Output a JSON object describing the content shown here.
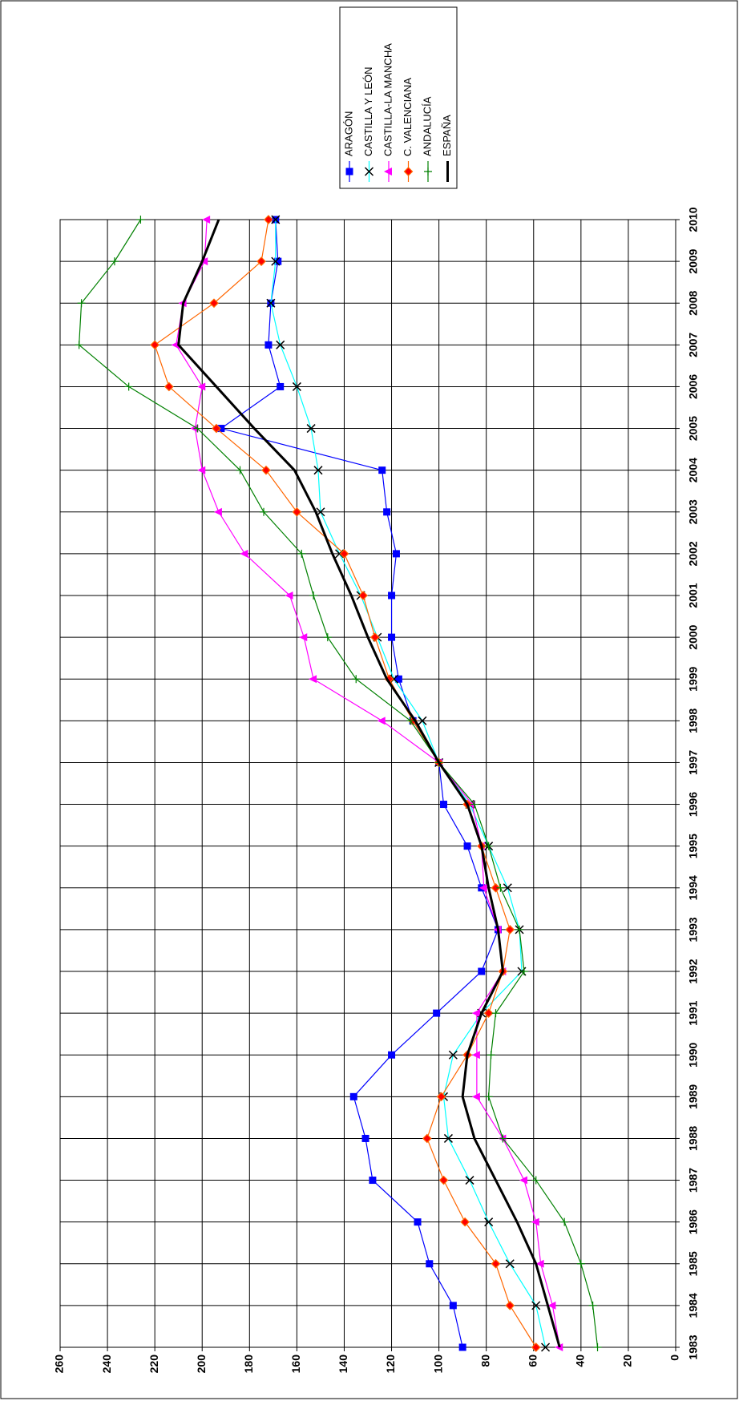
{
  "chart_data": {
    "type": "line",
    "x": [
      1983,
      1984,
      1985,
      1986,
      1987,
      1988,
      1989,
      1990,
      1991,
      1992,
      1993,
      1994,
      1995,
      1996,
      1997,
      1998,
      1999,
      2000,
      2001,
      2002,
      2003,
      2004,
      2005,
      2006,
      2007,
      2008,
      2009,
      2010
    ],
    "xlim": [
      1983,
      2010
    ],
    "xticks": [
      1983,
      1984,
      1985,
      1986,
      1987,
      1988,
      1989,
      1990,
      1991,
      1992,
      1993,
      1994,
      1995,
      1996,
      1997,
      1998,
      1999,
      2000,
      2001,
      2002,
      2003,
      2004,
      2005,
      2006,
      2007,
      2008,
      2009,
      2010
    ],
    "ylim": [
      0,
      260
    ],
    "yticks": [
      0,
      20,
      40,
      60,
      80,
      100,
      120,
      140,
      160,
      180,
      200,
      220,
      240,
      260
    ],
    "grid": true,
    "rotated": true,
    "legend": "top-right",
    "series": [
      {
        "name": "ARAGÓN",
        "color": "#0000ff",
        "marker": "square",
        "marker_color": "#0000ff",
        "line_width": 1.2,
        "values": [
          90,
          94,
          104,
          109,
          128,
          131,
          136,
          120,
          101,
          82,
          75,
          82,
          88,
          98,
          100,
          111,
          117,
          120,
          120,
          118,
          122,
          124,
          192,
          167,
          172,
          171,
          168,
          169
        ]
      },
      {
        "name": "CASTILLA Y LEÓN",
        "color": "#00ffff",
        "marker": "x",
        "marker_color": "#000000",
        "line_width": 1.2,
        "values": [
          55,
          59,
          70,
          79,
          87,
          96,
          98,
          94,
          82,
          65,
          66,
          71,
          79,
          87,
          100,
          107,
          119,
          126,
          133,
          142,
          150,
          151,
          154,
          160,
          167,
          171,
          169,
          169
        ]
      },
      {
        "name": "CASTILLA-LA MANCHA",
        "color": "#ff00ff",
        "marker": "triangle",
        "marker_color": "#ff00ff",
        "line_width": 1.2,
        "values": [
          49,
          52,
          57,
          59,
          64,
          73,
          84,
          84,
          84,
          73,
          75,
          81,
          82,
          86,
          100,
          124,
          153,
          157,
          163,
          182,
          193,
          200,
          203,
          200,
          211,
          208,
          199,
          198
        ]
      },
      {
        "name": "C. VALENCIANA",
        "color": "#ff6600",
        "marker": "diamond",
        "marker_color": "#ff0000",
        "line_width": 1.2,
        "values": [
          59,
          70,
          76,
          89,
          98,
          105,
          99,
          88,
          79,
          73,
          70,
          76,
          82,
          88,
          100,
          111,
          121,
          127,
          132,
          140,
          160,
          173,
          194,
          214,
          220,
          195,
          175,
          172
        ]
      },
      {
        "name": "ANDALUCÍA",
        "color": "#008000",
        "marker": "plus",
        "marker_color": "#008000",
        "line_width": 1.2,
        "values": [
          33,
          35,
          40,
          47,
          59,
          73,
          79,
          78,
          76,
          64,
          66,
          74,
          79,
          85,
          100,
          112,
          135,
          147,
          153,
          158,
          174,
          184,
          202,
          231,
          252,
          251,
          237,
          226
        ]
      },
      {
        "name": "ESPAÑA",
        "color": "#000000",
        "marker": "none",
        "marker_color": "#000000",
        "line_width": 3,
        "values": [
          49,
          54,
          59,
          67,
          76,
          85,
          90,
          88,
          82,
          73,
          75,
          79,
          82,
          88,
          100,
          110,
          122,
          130,
          137,
          145,
          152,
          161,
          178,
          194,
          210,
          208,
          200,
          193
        ]
      }
    ]
  }
}
